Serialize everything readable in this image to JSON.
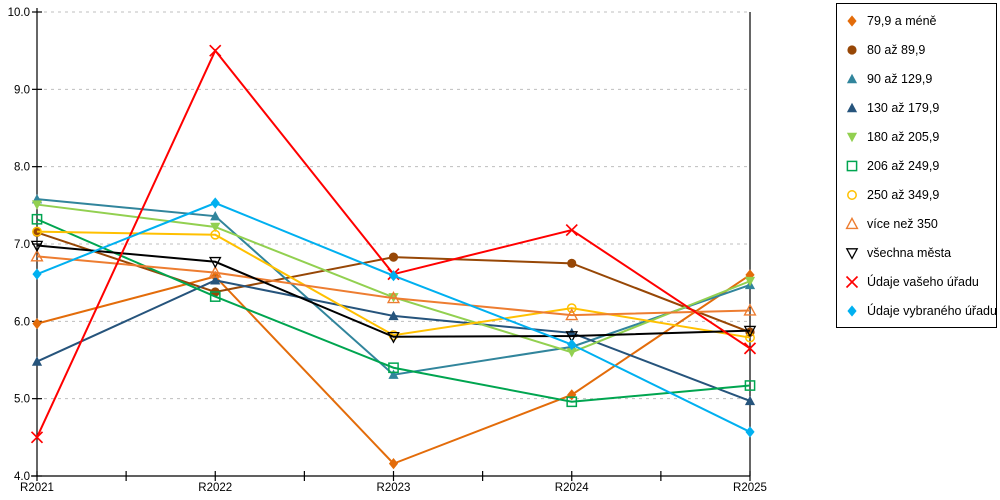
{
  "chart_data": {
    "type": "line",
    "title": "",
    "xlabel": "",
    "ylabel": "",
    "categories": [
      "R2021",
      "R2022",
      "R2023",
      "R2024",
      "R2025"
    ],
    "ylim": [
      4.0,
      10.0
    ],
    "ytick_step": 1.0,
    "ytick_labels": [
      "10.0",
      "9.0",
      "8.0",
      "7.0",
      "6.0",
      "5.0",
      "4.0"
    ],
    "grid": "horizontal-dashed",
    "grid_color": "#BFBFBF",
    "axis_color": "#000000",
    "legend_position": "right",
    "series": [
      {
        "name": "79,9 a méně",
        "color": "#E36C0A",
        "marker": "diamond",
        "values": [
          5.97,
          6.58,
          4.16,
          5.05,
          6.6
        ]
      },
      {
        "name": "80 až 89,9",
        "color": "#974706",
        "marker": "circle",
        "values": [
          7.15,
          6.38,
          6.83,
          6.75,
          5.86
        ]
      },
      {
        "name": "90 až 129,9",
        "color": "#31859C",
        "marker": "triangle-up",
        "values": [
          7.58,
          7.36,
          5.31,
          5.67,
          6.47
        ]
      },
      {
        "name": "130 až 179,9",
        "color": "#26547C",
        "marker": "triangle-up",
        "values": [
          5.48,
          6.53,
          6.07,
          5.85,
          4.97
        ]
      },
      {
        "name": "180 až 205,9",
        "color": "#92D050",
        "marker": "triangle-down",
        "values": [
          7.51,
          7.22,
          6.31,
          5.6,
          6.52
        ]
      },
      {
        "name": "206 až 249,9",
        "color": "#00A550",
        "marker": "square-open",
        "values": [
          7.32,
          6.32,
          5.4,
          4.96,
          5.17
        ]
      },
      {
        "name": "250 až 349,9",
        "color": "#FFC000",
        "marker": "circle-open",
        "values": [
          7.16,
          7.12,
          5.82,
          6.17,
          5.79
        ]
      },
      {
        "name": "více než 350",
        "color": "#ED7D31",
        "marker": "triangle-up-open",
        "values": [
          6.84,
          6.63,
          6.3,
          6.08,
          6.14
        ]
      },
      {
        "name": "všechna města",
        "color": "#000000",
        "marker": "triangle-down-open",
        "values": [
          6.98,
          6.77,
          5.8,
          5.81,
          5.88
        ]
      },
      {
        "name": "Údaje vašeho úřadu",
        "color": "#FF0000",
        "marker": "x-cross",
        "values": [
          4.5,
          9.5,
          6.61,
          7.18,
          5.65
        ]
      },
      {
        "name": "Údaje vybraného úřadu",
        "color": "#00B0F0",
        "marker": "diamond",
        "values": [
          6.61,
          7.53,
          6.59,
          5.7,
          4.57
        ]
      }
    ]
  }
}
